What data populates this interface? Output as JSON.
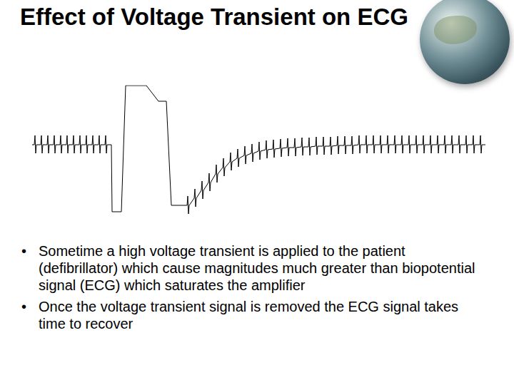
{
  "slide": {
    "title": "Effect of Voltage Transient on ECG",
    "bullets": [
      "Sometime a high voltage transient is applied to the patient (defibrillator) which cause magnitudes much greater than biopotential signal (ECG) which saturates the amplifier",
      "Once the voltage transient signal is removed the ECG signal takes time to recover"
    ]
  },
  "chart_data": {
    "type": "line",
    "color": "#000000",
    "grid": false,
    "tick_labels": false,
    "xlim": [
      45,
      680
    ],
    "ylim": [
      0,
      180
    ],
    "x": [
      45,
      48,
      49,
      50,
      51,
      57,
      58,
      59,
      60,
      66,
      67,
      68,
      69,
      75,
      76,
      77,
      78,
      84,
      85,
      86,
      87,
      93,
      94,
      95,
      96,
      102,
      103,
      104,
      105,
      111,
      112,
      113,
      114,
      120,
      121,
      122,
      123,
      129,
      130,
      131,
      132,
      138,
      139,
      140,
      141,
      147,
      148,
      149,
      150,
      156,
      157,
      170,
      176,
      205,
      222,
      233,
      240,
      262,
      263,
      264,
      265,
      272,
      273,
      274,
      275,
      282,
      283,
      284,
      285,
      292,
      293,
      294,
      295,
      302,
      303,
      304,
      305,
      312,
      313,
      314,
      315,
      322,
      323,
      324,
      325,
      332,
      333,
      334,
      335,
      342,
      343,
      344,
      345,
      352,
      353,
      354,
      355,
      362,
      363,
      364,
      365,
      372,
      373,
      374,
      375,
      382,
      383,
      384,
      385,
      392,
      393,
      394,
      395,
      402,
      403,
      404,
      405,
      412,
      413,
      414,
      415,
      422,
      423,
      424,
      425,
      432,
      433,
      434,
      435,
      442,
      443,
      444,
      445,
      452,
      453,
      454,
      455,
      462,
      463,
      464,
      465,
      472,
      473,
      474,
      475,
      482,
      483,
      484,
      485,
      492,
      493,
      494,
      495,
      502,
      503,
      504,
      505,
      512,
      513,
      514,
      515,
      522,
      523,
      524,
      525,
      532,
      533,
      534,
      535,
      542,
      543,
      544,
      545,
      552,
      553,
      554,
      555,
      562,
      563,
      564,
      565,
      572,
      573,
      574,
      575,
      582,
      583,
      584,
      585,
      592,
      593,
      594,
      595,
      602,
      603,
      604,
      605,
      612,
      613,
      614,
      615,
      622,
      623,
      624,
      625,
      632,
      633,
      634,
      635,
      642,
      643,
      644,
      645,
      652,
      653,
      654,
      655,
      662,
      663,
      664,
      665,
      672,
      673,
      674,
      675,
      680
    ],
    "values": [
      97,
      97,
      110,
      85,
      97,
      97,
      110,
      85,
      97,
      97,
      110,
      85,
      97,
      97,
      110,
      85,
      97,
      97,
      110,
      85,
      97,
      97,
      110,
      85,
      97,
      97,
      110,
      85,
      97,
      97,
      110,
      85,
      97,
      97,
      110,
      85,
      97,
      97,
      110,
      85,
      97,
      97,
      110,
      85,
      97,
      97,
      110,
      85,
      97,
      97,
      3,
      3,
      180,
      180,
      158,
      158,
      12,
      12,
      25,
      0,
      12,
      22,
      35,
      10,
      22,
      33,
      46,
      21,
      33,
      44,
      57,
      32,
      44,
      56,
      69,
      44,
      56,
      65,
      78,
      53,
      65,
      73,
      86,
      61,
      73,
      78,
      91,
      66,
      78,
      82,
      95,
      70,
      82,
      85,
      98,
      73,
      85,
      88,
      101,
      76,
      88,
      90,
      103,
      78,
      90,
      91,
      104,
      79,
      91,
      92,
      105,
      80,
      92,
      93,
      106,
      81,
      93,
      93,
      106,
      81,
      93,
      94,
      107,
      82,
      94,
      94,
      107,
      82,
      94,
      95,
      108,
      83,
      95,
      95,
      108,
      83,
      95,
      95,
      108,
      83,
      95,
      96,
      109,
      84,
      96,
      96,
      109,
      84,
      96,
      96,
      109,
      84,
      96,
      97,
      110,
      85,
      97,
      97,
      110,
      85,
      97,
      97,
      110,
      85,
      97,
      97,
      110,
      85,
      97,
      97,
      110,
      85,
      97,
      97,
      110,
      85,
      97,
      97,
      110,
      85,
      97,
      97,
      110,
      85,
      97,
      97,
      110,
      85,
      97,
      97,
      110,
      85,
      97,
      97,
      110,
      85,
      97,
      97,
      110,
      85,
      97,
      97,
      110,
      85,
      97,
      97,
      110,
      85,
      97,
      97,
      110,
      85,
      97,
      97,
      110,
      85,
      97,
      97,
      110,
      85,
      97,
      97,
      110,
      85,
      97,
      97
    ]
  }
}
